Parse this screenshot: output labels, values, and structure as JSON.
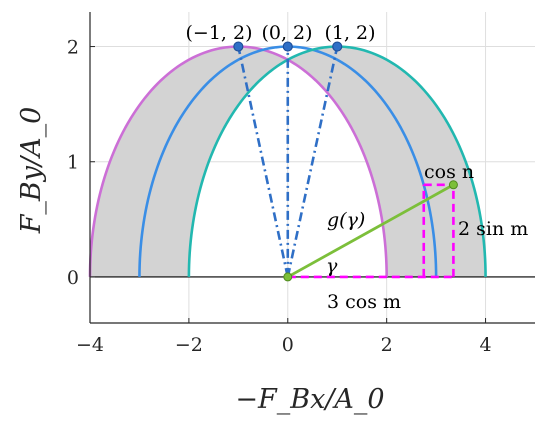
{
  "chart_data": {
    "type": "line",
    "xlabel": "−F_Bx/A_0",
    "ylabel": "F_By/A_0",
    "xlim": [
      -4,
      5
    ],
    "ylim": [
      -0.4,
      2.3
    ],
    "xticks": [
      -4,
      -2,
      0,
      2,
      4
    ],
    "xtick_labels": [
      "−4",
      "−2",
      "0",
      "2",
      "4"
    ],
    "yticks": [
      0,
      1,
      2
    ],
    "ytick_labels": [
      "0",
      "1",
      "2"
    ],
    "grid": true,
    "legend": "none",
    "colors": {
      "band_fill": "#d3d3d3",
      "left_arc": "#cc6fd6",
      "mid_arc": "#3a8ee6",
      "right_arc": "#22b8b0",
      "dashdot": "#2f6fc6",
      "vector": "#7cbf3a",
      "dashed_box": "#ff00ff",
      "baseline": "#000000"
    },
    "series": [
      {
        "kind": "semi-ellipse",
        "center": [
          -1,
          0
        ],
        "a": 3,
        "b": 2,
        "color_key": "left_arc"
      },
      {
        "kind": "semi-ellipse",
        "center": [
          0,
          0
        ],
        "a": 3,
        "b": 2,
        "color_key": "mid_arc"
      },
      {
        "kind": "semi-ellipse",
        "center": [
          1,
          0
        ],
        "a": 3,
        "b": 2,
        "color_key": "right_arc"
      }
    ],
    "band": {
      "between": [
        "left_arc",
        "right_arc"
      ],
      "color_key": "band_fill"
    },
    "points": [
      {
        "x": -1,
        "y": 2,
        "label": "(−1, 2)"
      },
      {
        "x": 0,
        "y": 2,
        "label": "(0, 2)"
      },
      {
        "x": 1,
        "y": 2,
        "label": "(1, 2)"
      }
    ],
    "dashdot_lines": [
      {
        "from": [
          0,
          0
        ],
        "to": [
          -1,
          2
        ]
      },
      {
        "from": [
          0,
          0
        ],
        "to": [
          0,
          2
        ]
      },
      {
        "from": [
          0,
          0
        ],
        "to": [
          1,
          2
        ]
      }
    ],
    "vector": {
      "from": [
        0,
        0
      ],
      "to": [
        3.35,
        0.8
      ]
    },
    "dashed_box": {
      "x0": 2.75,
      "x1": 3.35,
      "y0": 0,
      "y1": 0.8
    },
    "annotations": {
      "g_gamma": "g(γ)",
      "gamma": "γ",
      "cos_n": "cos n",
      "two_sin_m": "2 sin m",
      "three_cos_m": "3 cos m"
    }
  }
}
